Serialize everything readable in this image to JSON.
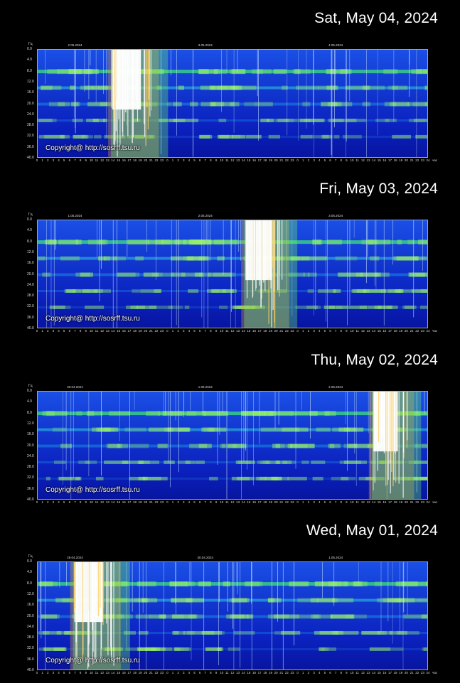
{
  "unit_label": "Гц",
  "hour_unit": "час",
  "copyright": "Copyright@ http://sosrff.tsu.ru",
  "y_labels": [
    "0.0",
    "4.0",
    "8.0",
    "12.0",
    "16.0",
    "20.0",
    "24.0",
    "28.0",
    "32.0",
    "36.0",
    "40.0"
  ],
  "colors": {
    "background": "#000000",
    "spectrogram_base": "#0a18b8",
    "band": "#3fe07a",
    "burst": "#ffffff"
  },
  "panels": [
    {
      "date": "Sat, May 04, 2024",
      "days": [
        "2.05.2024",
        "3.05.2024",
        "4.05.2024"
      ],
      "bursts": [
        {
          "start_hour": 13.5,
          "end_hour": 21.0
        }
      ]
    },
    {
      "date": "Fri, May 03, 2024",
      "days": [
        "1.05.2024",
        "2.05.2024",
        "3.05.2024"
      ],
      "bursts": [
        {
          "start_hour": 38.0,
          "end_hour": 45.0
        }
      ]
    },
    {
      "date": "Thu, May 02, 2024",
      "days": [
        "30.04.2024",
        "1.05.2024",
        "2.05.2024"
      ],
      "bursts": [
        {
          "start_hour": 61.5,
          "end_hour": 68.0
        }
      ]
    },
    {
      "date": "Wed, May 01, 2024",
      "days": [
        "29.04.2024",
        "30.04.2024",
        "1.05.2024"
      ],
      "bursts": [
        {
          "start_hour": 6.5,
          "end_hour": 14.0
        }
      ]
    }
  ]
}
